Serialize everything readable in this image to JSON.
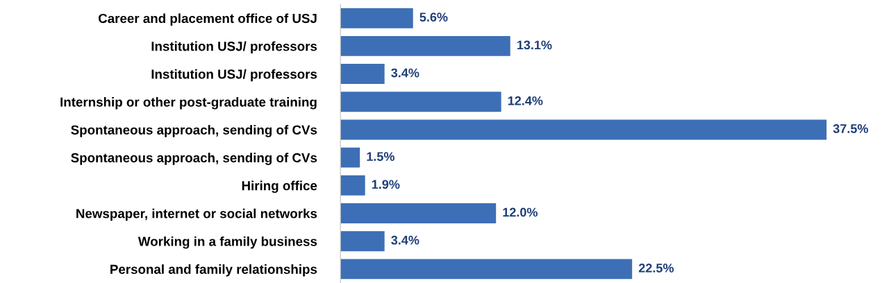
{
  "chart_data": {
    "type": "bar",
    "orientation": "horizontal",
    "categories": [
      "Career and placement office of USJ",
      "Institution USJ/ professors",
      "Institution USJ/ professors",
      "Internship or other post-graduate training",
      "Spontaneous approach, sending of CVs",
      "Spontaneous approach, sending of CVs",
      "Hiring office",
      "Newspaper, internet or social networks",
      "Working in a family business",
      "Personal and family relationships"
    ],
    "values": [
      5.6,
      13.1,
      3.4,
      12.4,
      37.5,
      1.5,
      1.9,
      12.0,
      3.4,
      22.5
    ],
    "value_labels": [
      "5.6%",
      "13.1%",
      "3.4%",
      "12.4%",
      "37.5%",
      "1.5%",
      "1.9%",
      "12.0%",
      "3.4%",
      "22.5%"
    ],
    "color": "#3d6fb6",
    "grid": false,
    "legend": false
  }
}
